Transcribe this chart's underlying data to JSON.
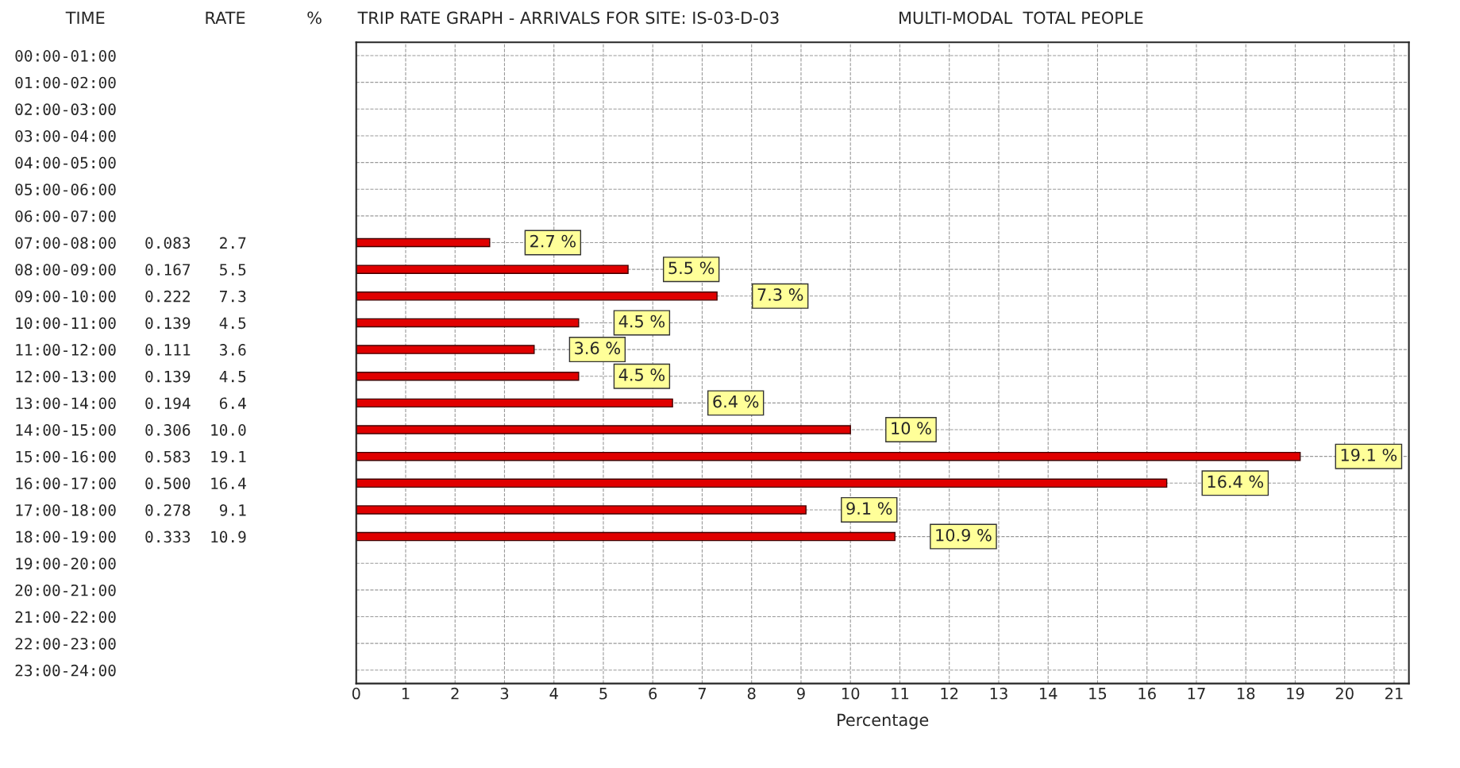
{
  "chart_data": {
    "type": "bar",
    "orientation": "horizontal",
    "title": "TRIP RATE GRAPH - ARRIVALS FOR SITE: IS-03-D-03",
    "subtitle": "MULTI-MODAL  TOTAL PEOPLE",
    "xlabel": "Percentage",
    "annotations": [
      "TIME",
      "RATE",
      "%"
    ],
    "categories": [
      "00:00-01:00",
      "01:00-02:00",
      "02:00-03:00",
      "03:00-04:00",
      "04:00-05:00",
      "05:00-06:00",
      "06:00-07:00",
      "07:00-08:00   0.083   2.7",
      "08:00-09:00   0.167   5.5",
      "09:00-10:00   0.222   7.3",
      "10:00-11:00   0.139   4.5",
      "11:00-12:00   0.111   3.6",
      "12:00-13:00   0.139   4.5",
      "13:00-14:00   0.194   6.4",
      "14:00-15:00   0.306  10.0",
      "15:00-16:00   0.583  19.1",
      "16:00-17:00   0.500  16.4",
      "17:00-18:00   0.278   9.1",
      "18:00-19:00   0.333  10.9",
      "19:00-20:00",
      "20:00-21:00",
      "21:00-22:00",
      "22:00-23:00",
      "23:00-24:00"
    ],
    "values": [
      null,
      null,
      null,
      null,
      null,
      null,
      null,
      2.7,
      5.5,
      7.3,
      4.5,
      3.6,
      4.5,
      6.4,
      10.0,
      19.1,
      16.4,
      9.1,
      10.9,
      null,
      null,
      null,
      null,
      null
    ],
    "value_labels": [
      null,
      null,
      null,
      null,
      null,
      null,
      null,
      "2.7 %",
      "5.5 %",
      "7.3 %",
      "4.5 %",
      "3.6 %",
      "4.5 %",
      "6.4 %",
      "10 %",
      "19.1 %",
      "16.4 %",
      "9.1 %",
      "10.9 %",
      null,
      null,
      null,
      null,
      null
    ],
    "color": "#e00000",
    "xlim": [
      0,
      21.3
    ],
    "xticks": [
      0,
      1,
      2,
      3,
      4,
      5,
      6,
      7,
      8,
      9,
      10,
      11,
      12,
      13,
      14,
      15,
      16,
      17,
      18,
      19,
      20,
      21
    ],
    "grid": true,
    "line_style": "dashed"
  }
}
